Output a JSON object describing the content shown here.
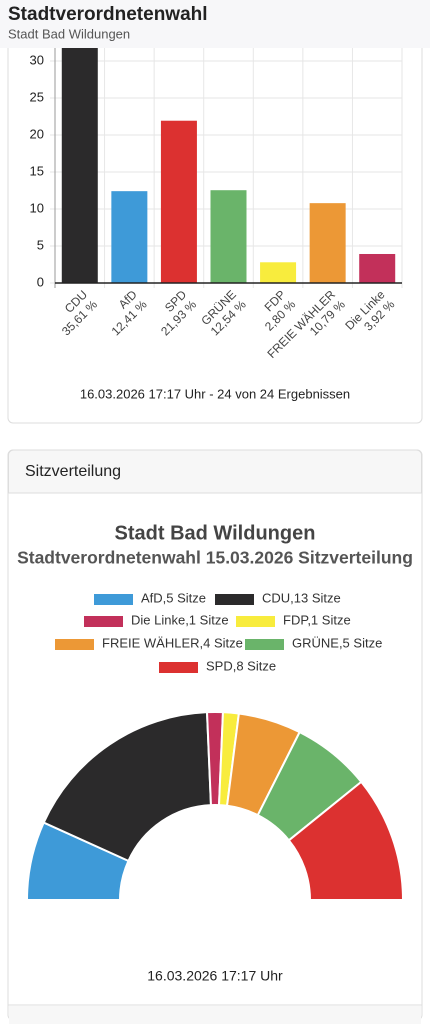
{
  "header": {
    "title": "Stadtverordnetenwahl",
    "subtitle": "Stadt Bad Wildungen"
  },
  "results_panel": {
    "footer": "16.03.2026 17:17 Uhr - 24 von 24 Ergebnissen"
  },
  "seats_panel": {
    "heading": "Sitzverteilung",
    "footer": "16.03.2026 17:17 Uhr"
  },
  "chart_data": [
    {
      "type": "bar",
      "categories": [
        "CDU",
        "AfD",
        "SPD",
        "GRÜNE",
        "FDP",
        "FREIE WÄHLER",
        "Die Linke"
      ],
      "values": [
        35.61,
        12.41,
        21.93,
        12.54,
        2.8,
        10.79,
        3.92
      ],
      "value_labels": [
        "35,61 %",
        "12,41 %",
        "21,93 %",
        "12,54 %",
        "2,80 %",
        "10,79 %",
        "3,92 %"
      ],
      "colors": [
        "#2b2a2b",
        "#3e9ad8",
        "#dc3130",
        "#6ab46a",
        "#f8ec3d",
        "#ec9836",
        "#c2305a"
      ],
      "ylim": [
        0,
        40
      ],
      "yticks": [
        0,
        5,
        10,
        15,
        20,
        25,
        30
      ],
      "grid": true
    },
    {
      "type": "pie",
      "half": true,
      "title": "Stadt Bad Wildungen",
      "subtitle": "Stadtverordnetenwahl 15.03.2026 Sitzverteilung",
      "categories": [
        "AfD,5 Sitze",
        "CDU,13 Sitze",
        "Die Linke,1 Sitze",
        "FDP,1 Sitze",
        "FREIE WÄHLER,4 Sitze",
        "GRÜNE,5 Sitze",
        "SPD,8 Sitze"
      ],
      "values": [
        5,
        13,
        1,
        1,
        4,
        5,
        8
      ],
      "colors": [
        "#3e9ad8",
        "#2b2a2b",
        "#c2305a",
        "#f8ec3d",
        "#ec9836",
        "#6ab46a",
        "#dc3130"
      ]
    }
  ]
}
